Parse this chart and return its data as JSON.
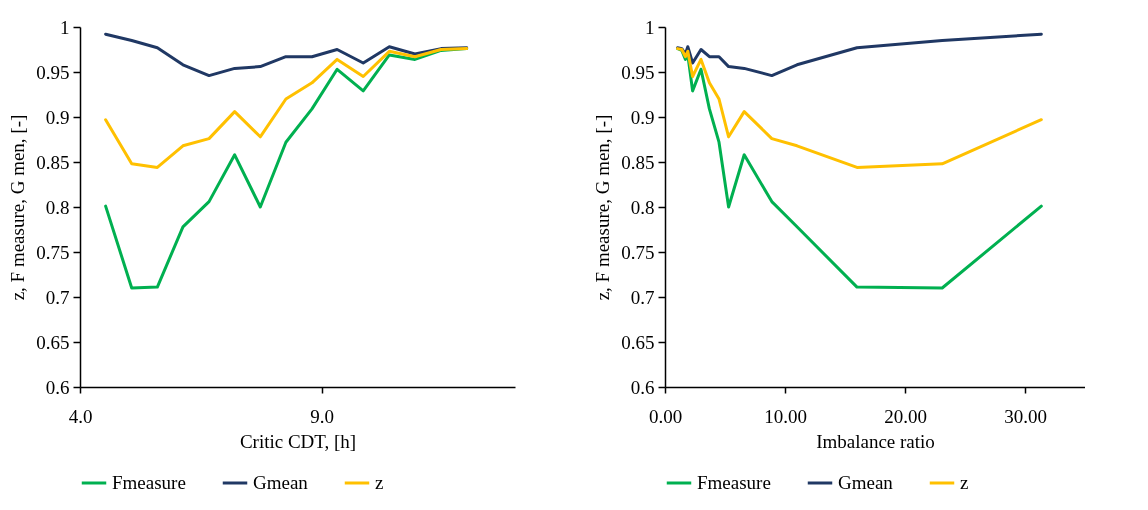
{
  "chart_data": [
    {
      "type": "line",
      "xlabel": "Critic CDT, [h]",
      "ylabel": "z, F measure, G men, [-]",
      "x": [
        4.53,
        5.07,
        5.6,
        6.13,
        6.67,
        7.2,
        7.73,
        8.26,
        8.8,
        9.32,
        9.86,
        10.4,
        10.93,
        11.47,
        12.0
      ],
      "xlim": [
        4,
        13
      ],
      "xticks": [
        {
          "value": 4,
          "label": "4.0"
        },
        {
          "value": 9,
          "label": "9.0"
        }
      ],
      "ylim": [
        0.6,
        1
      ],
      "yticks": [
        0.6,
        0.65,
        0.7,
        0.75,
        0.8,
        0.85,
        0.9,
        0.95,
        1
      ],
      "grid": false,
      "legend": "bottom",
      "marker": "none",
      "line_style": "solid",
      "series": [
        {
          "name": "Fmeasure",
          "color": "#00b050",
          "values": [
            0.801,
            0.71,
            0.711,
            0.778,
            0.806,
            0.858,
            0.8,
            0.872,
            0.909,
            0.953,
            0.929,
            0.969,
            0.964,
            0.974,
            0.976
          ]
        },
        {
          "name": "Gmean",
          "color": "#203864",
          "values": [
            0.992,
            0.985,
            0.977,
            0.958,
            0.946,
            0.954,
            0.956,
            0.967,
            0.967,
            0.975,
            0.96,
            0.978,
            0.97,
            0.976,
            0.977
          ]
        },
        {
          "name": "z",
          "color": "#ffc000",
          "values": [
            0.897,
            0.848,
            0.844,
            0.868,
            0.876,
            0.906,
            0.878,
            0.92,
            0.938,
            0.964,
            0.945,
            0.973,
            0.967,
            0.975,
            0.976
          ]
        }
      ]
    },
    {
      "type": "line",
      "xlabel": "Imbalance ratio",
      "ylabel": "z, F measure, G men, [-]",
      "x": [
        31.36,
        23.1,
        16.0,
        11.0,
        8.9,
        6.6,
        5.3,
        4.5,
        3.7,
        3.0,
        2.3,
        1.9,
        1.7,
        1.4,
        1.05
      ],
      "xlim": [
        0,
        35
      ],
      "xticks": [
        {
          "value": 0,
          "label": "0.00"
        },
        {
          "value": 10,
          "label": "10.00"
        },
        {
          "value": 20,
          "label": "20.00"
        },
        {
          "value": 30,
          "label": "30.00"
        }
      ],
      "ylim": [
        0.6,
        1
      ],
      "yticks": [
        0.6,
        0.65,
        0.7,
        0.75,
        0.8,
        0.85,
        0.9,
        0.95,
        1
      ],
      "grid": false,
      "legend": "bottom",
      "marker": "none",
      "line_style": "solid",
      "series": [
        {
          "name": "Fmeasure",
          "color": "#00b050",
          "values": [
            0.801,
            0.71,
            0.711,
            0.778,
            0.806,
            0.858,
            0.8,
            0.872,
            0.909,
            0.953,
            0.929,
            0.969,
            0.964,
            0.974,
            0.976
          ]
        },
        {
          "name": "Gmean",
          "color": "#203864",
          "values": [
            0.992,
            0.985,
            0.977,
            0.958,
            0.946,
            0.954,
            0.956,
            0.967,
            0.967,
            0.975,
            0.96,
            0.978,
            0.97,
            0.976,
            0.977
          ]
        },
        {
          "name": "z",
          "color": "#ffc000",
          "values": [
            0.897,
            0.848,
            0.844,
            0.868,
            0.876,
            0.906,
            0.878,
            0.92,
            0.938,
            0.964,
            0.945,
            0.973,
            0.967,
            0.975,
            0.976
          ]
        }
      ]
    }
  ]
}
